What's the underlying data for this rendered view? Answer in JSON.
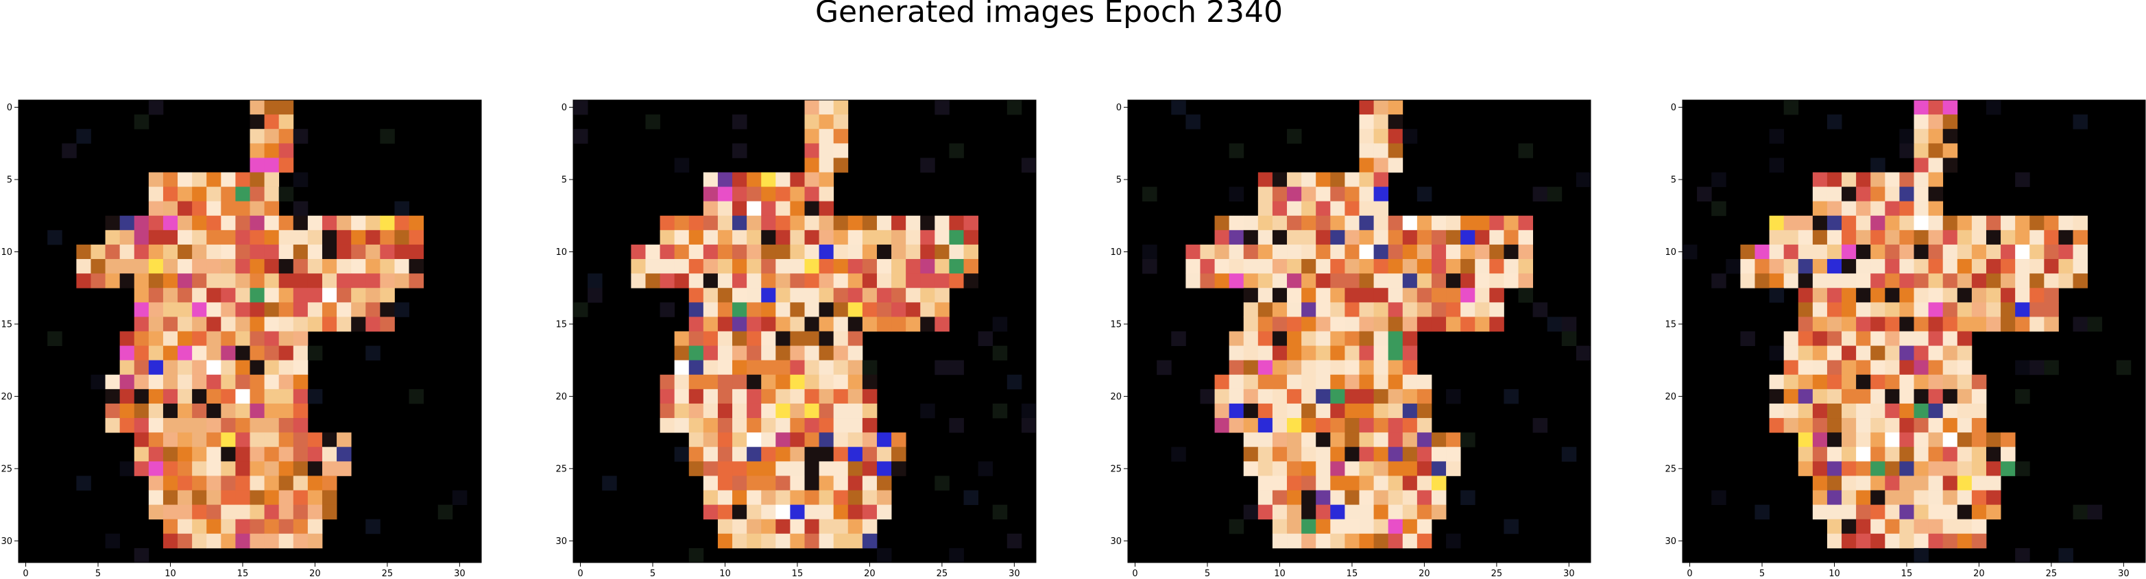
{
  "figure": {
    "title": "Generated images Epoch 2340"
  },
  "chart_data": [
    {
      "type": "heatmap",
      "panel": 1,
      "image_size": 32,
      "xlim": [
        -0.5,
        31.5
      ],
      "ylim": [
        31.5,
        -0.5
      ],
      "xticks": [
        0,
        5,
        10,
        15,
        20,
        25,
        30
      ],
      "yticks": [
        0,
        5,
        10,
        15,
        20,
        25,
        30
      ],
      "grid": false,
      "background": "#000000",
      "silhouette": "center-left"
    },
    {
      "type": "heatmap",
      "panel": 2,
      "image_size": 32,
      "xlim": [
        -0.5,
        31.5
      ],
      "ylim": [
        31.5,
        -0.5
      ],
      "xticks": [
        0,
        5,
        10,
        15,
        20,
        25,
        30
      ],
      "yticks": [
        0,
        5,
        10,
        15,
        20,
        25,
        30
      ],
      "grid": false,
      "background": "#000000",
      "silhouette": "bright"
    },
    {
      "type": "heatmap",
      "panel": 3,
      "image_size": 32,
      "xlim": [
        -0.5,
        31.5
      ],
      "ylim": [
        31.5,
        -0.5
      ],
      "xticks": [
        0,
        5,
        10,
        15,
        20,
        25,
        30
      ],
      "yticks": [
        0,
        5,
        10,
        15,
        20,
        25,
        30
      ],
      "grid": false,
      "background": "#000000",
      "silhouette": "bright"
    },
    {
      "type": "heatmap",
      "panel": 4,
      "image_size": 32,
      "xlim": [
        -0.5,
        31.5
      ],
      "ylim": [
        31.5,
        -0.5
      ],
      "xticks": [
        0,
        5,
        10,
        15,
        20,
        25,
        30
      ],
      "yticks": [
        0,
        5,
        10,
        15,
        20,
        25,
        30
      ],
      "grid": false,
      "background": "#000000",
      "silhouette": "bright"
    }
  ],
  "colors": {
    "background": "#000000",
    "palette": [
      "#f5c98a",
      "#e8843a",
      "#d9534f",
      "#f2a65a",
      "#fbe2c4",
      "#c0392b",
      "#e67e22",
      "#f7d4a6",
      "#b5651d",
      "#f4b183",
      "#e96a3b",
      "#fde8d0",
      "#d66a4a",
      "#f0b27a"
    ],
    "accents": [
      "#e84fc8",
      "#2a2ad8",
      "#ffffff",
      "#ffe14a",
      "#3a9a5c",
      "#6a3a9a",
      "#3a3a8a",
      "#c04080"
    ]
  }
}
